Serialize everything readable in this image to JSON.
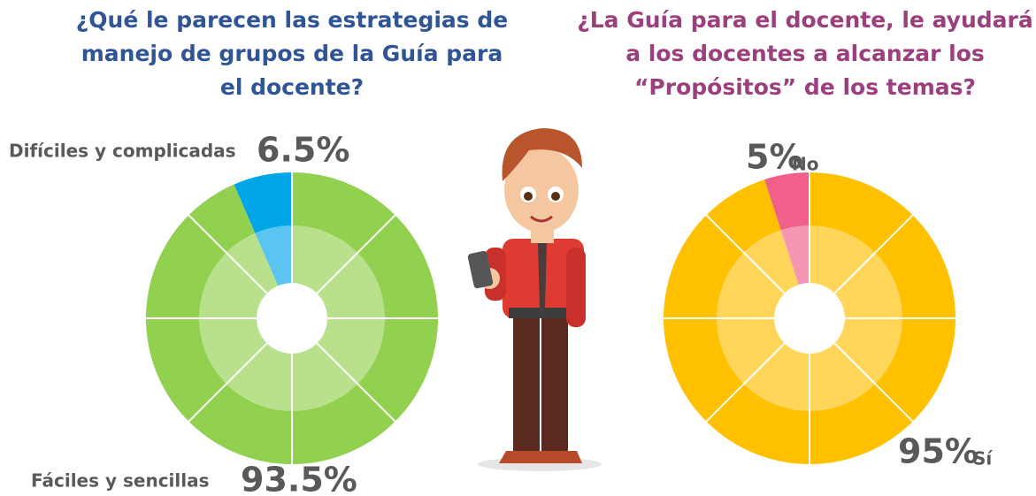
{
  "chart_data": [
    {
      "type": "pie",
      "title": "¿Qué le parecen las estrategias de manejo de grupos de la Guía para el docente?",
      "categories": [
        "Difíciles y complicadas",
        "Fáciles y sencillas"
      ],
      "values": [
        6.5,
        93.5
      ],
      "value_labels": [
        "6.5%",
        "93.5%"
      ],
      "colors": [
        "#00a6e8",
        "#92d050"
      ],
      "title_color": "#2f5597"
    },
    {
      "type": "pie",
      "title": "¿La Guía para el docente, le ayudará a los docentes a alcanzar los “Propósitos” de los temas?",
      "categories": [
        "No",
        "Sí"
      ],
      "values": [
        5,
        95
      ],
      "value_labels": [
        "5%",
        "95%"
      ],
      "colors": [
        "#f0608a",
        "#ffc000"
      ],
      "title_color": "#9b3f7d"
    }
  ]
}
